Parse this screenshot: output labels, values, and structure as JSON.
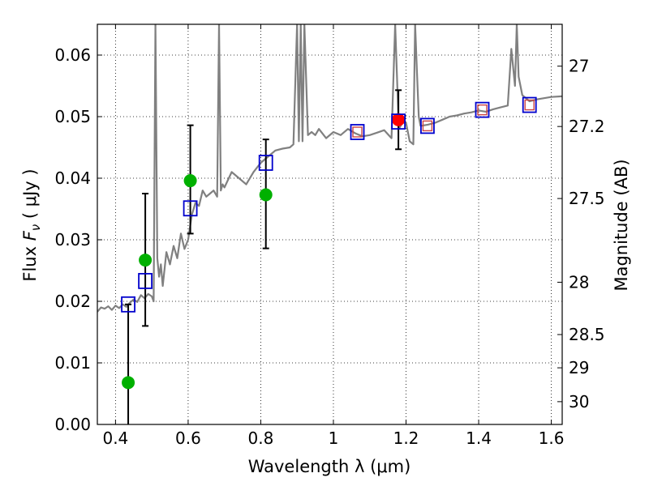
{
  "chart_data": {
    "type": "scatter",
    "title": "",
    "xlabel": "Wavelength  λ (μm)",
    "ylabel_left": {
      "prefix": "Flux ",
      "var": "F",
      "sub": "ν",
      "unit": " ( μJy )"
    },
    "ylabel_right": "Magnitude (AB)",
    "xlim": [
      0.35,
      1.63
    ],
    "ylim": [
      0.0,
      0.065
    ],
    "grid": true,
    "x_ticks": [
      0.4,
      0.6,
      0.8,
      1.0,
      1.2,
      1.4,
      1.6
    ],
    "x_tick_labels": [
      "0.4",
      "0.6",
      "0.8",
      "1",
      "1.2",
      "1.4",
      "1.6"
    ],
    "y_ticks": [
      0.0,
      0.01,
      0.02,
      0.03,
      0.04,
      0.05,
      0.06
    ],
    "y_tick_labels": [
      "0.00",
      "0.01",
      "0.02",
      "0.03",
      "0.04",
      "0.05",
      "0.06"
    ],
    "right_ticks": [
      {
        "flux": 0.0582,
        "label": "27"
      },
      {
        "flux": 0.0484,
        "label": "27.2"
      },
      {
        "flux": 0.0367,
        "label": "27.5"
      },
      {
        "flux": 0.0231,
        "label": "28"
      },
      {
        "flux": 0.0146,
        "label": "28.5"
      },
      {
        "flux": 0.0092,
        "label": "29"
      },
      {
        "flux": 0.0037,
        "label": "30"
      }
    ],
    "series": [
      {
        "name": "model-spectrum",
        "style": "line",
        "color": "#808080",
        "x": [
          0.35,
          0.36,
          0.37,
          0.38,
          0.39,
          0.4,
          0.41,
          0.42,
          0.43,
          0.44,
          0.45,
          0.46,
          0.47,
          0.48,
          0.49,
          0.5,
          0.505,
          0.51,
          0.515,
          0.52,
          0.525,
          0.53,
          0.54,
          0.55,
          0.56,
          0.57,
          0.58,
          0.59,
          0.6,
          0.61,
          0.62,
          0.63,
          0.64,
          0.65,
          0.66,
          0.67,
          0.68,
          0.685,
          0.69,
          0.695,
          0.7,
          0.72,
          0.74,
          0.76,
          0.78,
          0.8,
          0.82,
          0.84,
          0.86,
          0.88,
          0.89,
          0.9,
          0.905,
          0.91,
          0.915,
          0.92,
          0.93,
          0.94,
          0.95,
          0.96,
          0.98,
          1.0,
          1.02,
          1.04,
          1.06,
          1.08,
          1.1,
          1.12,
          1.14,
          1.16,
          1.17,
          1.18,
          1.19,
          1.2,
          1.21,
          1.22,
          1.225,
          1.23,
          1.235,
          1.24,
          1.26,
          1.28,
          1.3,
          1.32,
          1.34,
          1.36,
          1.38,
          1.4,
          1.42,
          1.44,
          1.46,
          1.48,
          1.49,
          1.5,
          1.505,
          1.51,
          1.52,
          1.54,
          1.56,
          1.58,
          1.6,
          1.63
        ],
        "y": [
          0.0183,
          0.019,
          0.0188,
          0.0192,
          0.0186,
          0.0193,
          0.0189,
          0.0195,
          0.0191,
          0.0198,
          0.0203,
          0.0199,
          0.021,
          0.0205,
          0.0212,
          0.0208,
          0.02,
          0.065,
          0.027,
          0.024,
          0.026,
          0.0225,
          0.028,
          0.026,
          0.029,
          0.027,
          0.031,
          0.0285,
          0.03,
          0.034,
          0.036,
          0.0355,
          0.038,
          0.037,
          0.0375,
          0.038,
          0.037,
          0.065,
          0.038,
          0.039,
          0.0385,
          0.041,
          0.04,
          0.039,
          0.041,
          0.0425,
          0.0435,
          0.0445,
          0.0448,
          0.045,
          0.0455,
          0.065,
          0.046,
          0.065,
          0.046,
          0.065,
          0.047,
          0.0475,
          0.047,
          0.048,
          0.0465,
          0.0475,
          0.047,
          0.048,
          0.0473,
          0.0468,
          0.047,
          0.0474,
          0.0478,
          0.0465,
          0.065,
          0.048,
          0.049,
          0.049,
          0.046,
          0.0455,
          0.065,
          0.0575,
          0.05,
          0.0485,
          0.0487,
          0.049,
          0.0495,
          0.05,
          0.0502,
          0.0505,
          0.0507,
          0.051,
          0.0508,
          0.0512,
          0.0515,
          0.0518,
          0.061,
          0.055,
          0.065,
          0.0565,
          0.0535,
          0.0525,
          0.0528,
          0.053,
          0.0532,
          0.0533
        ]
      },
      {
        "name": "observed-flux",
        "style": "circle",
        "color": "#00b000",
        "x": [
          0.435,
          0.482,
          0.606,
          0.814
        ],
        "y": [
          0.0068,
          0.0267,
          0.0396,
          0.0373
        ],
        "err_low": [
          0.0068,
          0.0107,
          0.0086,
          0.0087
        ],
        "err_high": [
          0.0127,
          0.0108,
          0.009,
          0.009
        ]
      },
      {
        "name": "observed-flux-nir",
        "style": "circle",
        "color": "#ff0000",
        "x": [
          1.179
        ],
        "y": [
          0.0495
        ],
        "err_low": [
          0.0048
        ],
        "err_high": [
          0.0048
        ]
      },
      {
        "name": "model-synthetic-flux",
        "style": "square",
        "color": "#0000cc",
        "x": [
          0.435,
          0.482,
          0.606,
          0.814,
          1.066,
          1.179,
          1.259,
          1.41,
          1.54
        ],
        "y": [
          0.0195,
          0.0233,
          0.0351,
          0.0425,
          0.0475,
          0.0492,
          0.0485,
          0.0511,
          0.0519
        ]
      },
      {
        "name": "model-synthetic-flux-inner",
        "style": "square-small",
        "color": "#cc4444",
        "x": [
          1.066,
          1.259,
          1.41,
          1.54
        ],
        "y": [
          0.0475,
          0.0485,
          0.0511,
          0.0519
        ]
      }
    ]
  }
}
